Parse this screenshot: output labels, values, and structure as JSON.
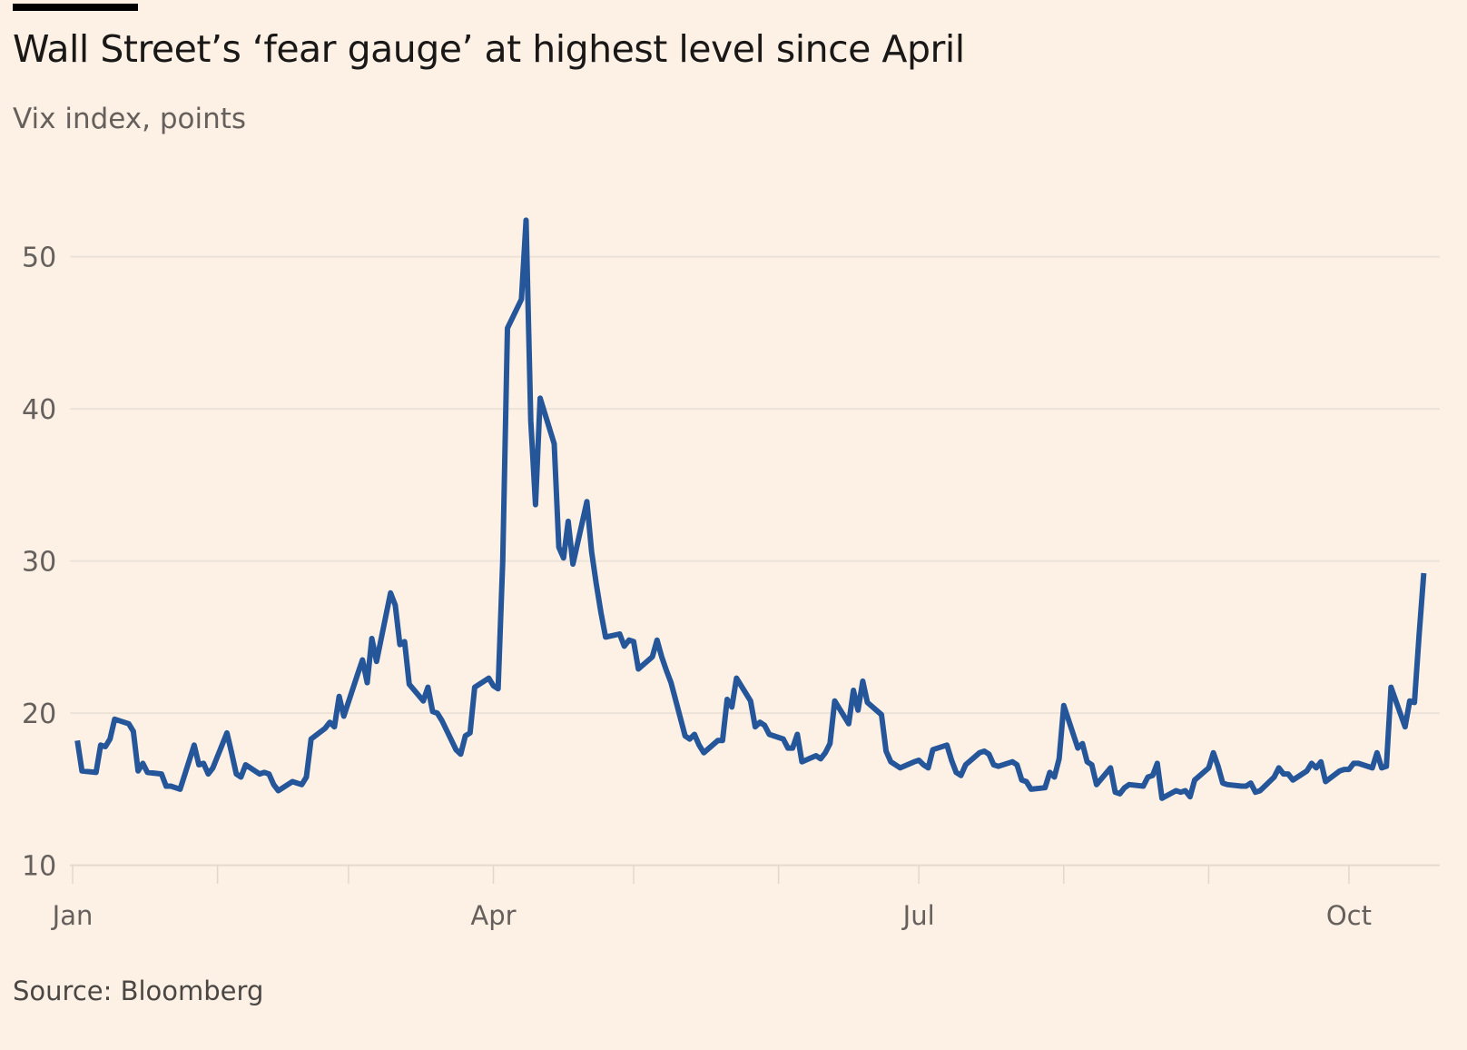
{
  "header": {
    "title": "Wall Street’s ‘fear gauge’ at highest level since April",
    "subtitle": "Vix index, points"
  },
  "footer": {
    "source": "Source: Bloomberg"
  },
  "colors": {
    "background": "#FDF1E6",
    "line": "#25569A",
    "grid": "#EDE2D8",
    "text": "#66605C"
  },
  "chart_data": {
    "type": "line",
    "title": "Wall Street’s ‘fear gauge’ at highest level since April",
    "subtitle": "Vix index, points",
    "xlabel": "",
    "ylabel": "",
    "ylim": [
      10,
      53
    ],
    "y_ticks": [
      10,
      20,
      30,
      40,
      50
    ],
    "y_tick_labels": [
      "10",
      "20",
      "30",
      "40",
      "50"
    ],
    "x_tick_labels": [
      "Jan",
      "Apr",
      "Jul",
      "Oct"
    ],
    "x_tick_months": [
      "01-01",
      "04-01",
      "07-01",
      "10-01"
    ],
    "x_minor_ticks": [
      "02-01",
      "03-01",
      "05-01",
      "06-01",
      "08-01",
      "09-01"
    ],
    "grid": "horizontal",
    "legend": "none",
    "series": [
      {
        "x": [
          "01-02",
          "01-03",
          "01-06",
          "01-07",
          "01-08",
          "01-09",
          "01-10",
          "01-13",
          "01-14",
          "01-15",
          "01-16",
          "01-17",
          "01-20",
          "01-21",
          "01-22",
          "01-23",
          "01-24",
          "01-27",
          "01-28",
          "01-29",
          "01-30",
          "01-31",
          "02-03",
          "02-04",
          "02-05",
          "02-06",
          "02-07",
          "02-10",
          "02-11",
          "02-12",
          "02-13",
          "02-14",
          "02-17",
          "02-18",
          "02-19",
          "02-20",
          "02-21",
          "02-24",
          "02-25",
          "02-26",
          "02-27",
          "02-28",
          "03-03",
          "03-04",
          "03-05",
          "03-06",
          "03-07",
          "03-10",
          "03-11",
          "03-12",
          "03-13",
          "03-14",
          "03-17",
          "03-18",
          "03-19",
          "03-20",
          "03-21",
          "03-24",
          "03-25",
          "03-26",
          "03-27",
          "03-28",
          "03-31",
          "04-01",
          "04-02",
          "04-03",
          "04-04",
          "04-07",
          "04-08",
          "04-09",
          "04-10",
          "04-11",
          "04-14",
          "04-15",
          "04-16",
          "04-17",
          "04-18",
          "04-21",
          "04-22",
          "04-23",
          "04-24",
          "04-25",
          "04-28",
          "04-29",
          "04-30",
          "05-01",
          "05-02",
          "05-05",
          "05-06",
          "05-07",
          "05-08",
          "05-09",
          "05-12",
          "05-13",
          "05-14",
          "05-15",
          "05-16",
          "05-19",
          "05-20",
          "05-21",
          "05-22",
          "05-23",
          "05-26",
          "05-27",
          "05-28",
          "05-29",
          "05-30",
          "06-02",
          "06-03",
          "06-04",
          "06-05",
          "06-06",
          "06-09",
          "06-10",
          "06-11",
          "06-12",
          "06-13",
          "06-16",
          "06-17",
          "06-18",
          "06-19",
          "06-20",
          "06-23",
          "06-24",
          "06-25",
          "06-26",
          "06-27",
          "06-30",
          "07-01",
          "07-02",
          "07-03",
          "07-04",
          "07-07",
          "07-08",
          "07-09",
          "07-10",
          "07-11",
          "07-14",
          "07-15",
          "07-16",
          "07-17",
          "07-18",
          "07-21",
          "07-22",
          "07-23",
          "07-24",
          "07-25",
          "07-28",
          "07-29",
          "07-30",
          "07-31",
          "08-01",
          "08-04",
          "08-05",
          "08-06",
          "08-07",
          "08-08",
          "08-11",
          "08-12",
          "08-13",
          "08-14",
          "08-15",
          "08-18",
          "08-19",
          "08-20",
          "08-21",
          "08-22",
          "08-25",
          "08-26",
          "08-27",
          "08-28",
          "08-29",
          "09-01",
          "09-02",
          "09-03",
          "09-04",
          "09-05",
          "09-08",
          "09-09",
          "09-10",
          "09-11",
          "09-12",
          "09-15",
          "09-16",
          "09-17",
          "09-18",
          "09-19",
          "09-22",
          "09-23",
          "09-24",
          "09-25",
          "09-26",
          "09-29",
          "09-30",
          "10-01",
          "10-02",
          "10-03",
          "10-06",
          "10-07",
          "10-08",
          "10-09",
          "10-10",
          "10-13",
          "10-14",
          "10-15",
          "10-16",
          "10-17"
        ],
        "y": [
          18.2,
          16.2,
          16.1,
          17.9,
          17.8,
          18.3,
          19.6,
          19.3,
          18.8,
          16.2,
          16.7,
          16.1,
          16.0,
          15.2,
          15.2,
          15.1,
          15.0,
          17.9,
          16.6,
          16.7,
          16.0,
          16.4,
          18.7,
          17.4,
          16.0,
          15.8,
          16.6,
          16.0,
          16.1,
          16.0,
          15.3,
          14.9,
          15.5,
          15.4,
          15.3,
          15.8,
          18.3,
          19.0,
          19.4,
          19.1,
          21.1,
          19.8,
          22.6,
          23.5,
          22.0,
          24.9,
          23.4,
          27.9,
          27.1,
          24.5,
          24.7,
          21.9,
          20.8,
          21.7,
          20.1,
          20.0,
          19.5,
          17.6,
          17.3,
          18.5,
          18.7,
          21.7,
          22.3,
          21.8,
          21.6,
          30.0,
          45.3,
          47.2,
          52.4,
          39.2,
          33.7,
          40.7,
          37.7,
          30.9,
          30.2,
          32.6,
          29.8,
          33.9,
          30.6,
          28.5,
          26.6,
          25.0,
          25.2,
          24.4,
          24.8,
          24.7,
          22.9,
          23.7,
          24.8,
          23.7,
          22.8,
          22.0,
          18.5,
          18.3,
          18.6,
          17.9,
          17.4,
          18.2,
          18.2,
          20.9,
          20.4,
          22.3,
          20.8,
          19.1,
          19.4,
          19.2,
          18.6,
          18.3,
          17.7,
          17.7,
          18.6,
          16.8,
          17.2,
          17.0,
          17.4,
          18.0,
          20.8,
          19.3,
          21.5,
          20.2,
          22.1,
          20.7,
          19.9,
          17.5,
          16.8,
          16.6,
          16.4,
          16.8,
          16.9,
          16.6,
          16.4,
          17.6,
          17.9,
          16.9,
          16.1,
          15.9,
          16.6,
          17.4,
          17.5,
          17.3,
          16.6,
          16.5,
          16.8,
          16.6,
          15.6,
          15.5,
          15.0,
          15.1,
          16.1,
          15.8,
          17.0,
          20.5,
          17.7,
          18.0,
          16.8,
          16.6,
          15.3,
          16.4,
          14.8,
          14.7,
          15.1,
          15.3,
          15.2,
          15.8,
          15.9,
          16.7,
          14.4,
          14.9,
          14.8,
          14.9,
          14.5,
          15.6,
          16.4,
          17.4,
          16.5,
          15.4,
          15.3,
          15.2,
          15.2,
          15.4,
          14.8,
          14.9,
          15.8,
          16.4,
          16.0,
          16.0,
          15.6,
          16.2,
          16.7,
          16.4,
          16.8,
          15.5,
          16.2,
          16.3,
          16.3,
          16.7,
          16.7,
          16.4,
          17.4,
          16.4,
          16.5,
          21.7,
          19.1,
          20.8,
          20.7,
          25.1,
          29.2
        ]
      }
    ]
  }
}
